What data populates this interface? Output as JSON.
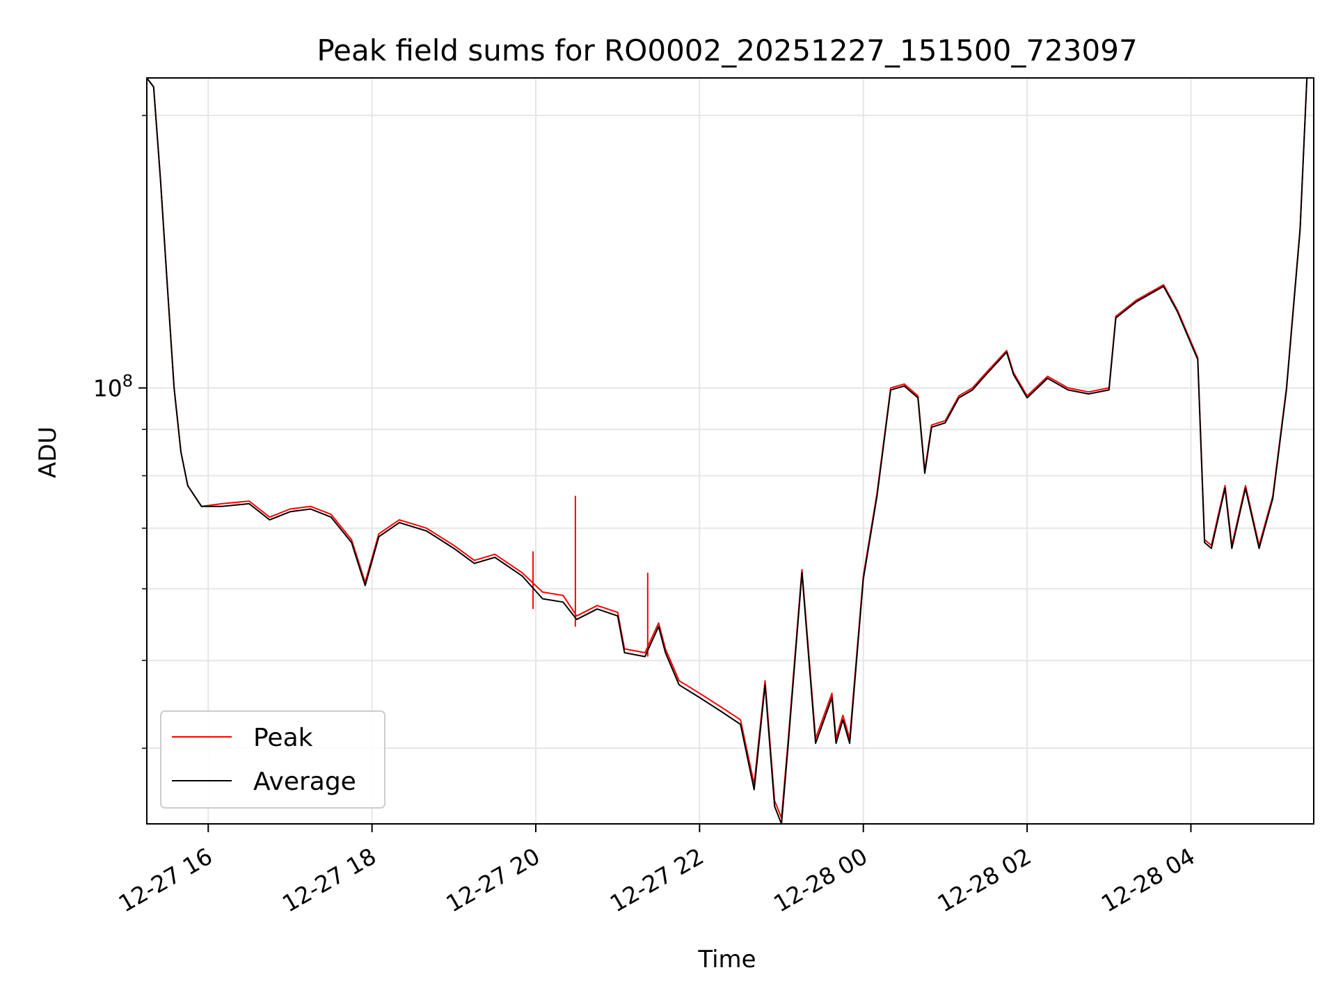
{
  "chart_data": {
    "type": "line",
    "title": "Peak field sums for RO0002_20251227_151500_723097",
    "xlabel": "Time",
    "ylabel": "ADU",
    "yscale": "log",
    "ylim": [
      33000000,
      220000000
    ],
    "xlim": [
      "2025-12-27 15:15",
      "2025-12-28 05:30"
    ],
    "grid": true,
    "legend": "lower-left",
    "x_ticks": [
      "12-27 16",
      "12-27 18",
      "12-27 20",
      "12-27 22",
      "12-28 00",
      "12-28 02",
      "12-28 04"
    ],
    "x_tick_times": [
      "2025-12-27 16:00",
      "2025-12-27 18:00",
      "2025-12-27 20:00",
      "2025-12-27 22:00",
      "2025-12-28 00:00",
      "2025-12-28 02:00",
      "2025-12-28 04:00"
    ],
    "y_ticks": [
      {
        "label": "10",
        "exp": "8",
        "value": 100000000
      }
    ],
    "y_minor_ticks": [
      40000000,
      50000000,
      60000000,
      70000000,
      80000000,
      90000000,
      200000000
    ],
    "x": [
      "2025-12-27 15:15",
      "2025-12-27 15:20",
      "2025-12-27 15:25",
      "2025-12-27 15:30",
      "2025-12-27 15:35",
      "2025-12-27 15:40",
      "2025-12-27 15:45",
      "2025-12-27 15:55",
      "2025-12-27 16:10",
      "2025-12-27 16:30",
      "2025-12-27 16:45",
      "2025-12-27 17:00",
      "2025-12-27 17:15",
      "2025-12-27 17:30",
      "2025-12-27 17:45",
      "2025-12-27 17:55",
      "2025-12-27 18:05",
      "2025-12-27 18:20",
      "2025-12-27 18:40",
      "2025-12-27 19:00",
      "2025-12-27 19:15",
      "2025-12-27 19:30",
      "2025-12-27 19:50",
      "2025-12-27 20:05",
      "2025-12-27 20:20",
      "2025-12-27 20:30",
      "2025-12-27 20:45",
      "2025-12-27 21:00",
      "2025-12-27 21:05",
      "2025-12-27 21:20",
      "2025-12-27 21:30",
      "2025-12-27 21:35",
      "2025-12-27 21:45",
      "2025-12-27 22:00",
      "2025-12-27 22:15",
      "2025-12-27 22:30",
      "2025-12-27 22:40",
      "2025-12-27 22:48",
      "2025-12-27 22:55",
      "2025-12-27 23:00",
      "2025-12-27 23:05",
      "2025-12-27 23:15",
      "2025-12-27 23:25",
      "2025-12-27 23:30",
      "2025-12-27 23:37",
      "2025-12-27 23:40",
      "2025-12-27 23:45",
      "2025-12-27 23:50",
      "2025-12-28 00:00",
      "2025-12-28 00:10",
      "2025-12-28 00:20",
      "2025-12-28 00:30",
      "2025-12-28 00:40",
      "2025-12-28 00:45",
      "2025-12-28 00:50",
      "2025-12-28 01:00",
      "2025-12-28 01:10",
      "2025-12-28 01:20",
      "2025-12-28 01:30",
      "2025-12-28 01:45",
      "2025-12-28 01:50",
      "2025-12-28 02:00",
      "2025-12-28 02:15",
      "2025-12-28 02:30",
      "2025-12-28 02:45",
      "2025-12-28 03:00",
      "2025-12-28 03:05",
      "2025-12-28 03:20",
      "2025-12-28 03:40",
      "2025-12-28 03:50",
      "2025-12-28 04:05",
      "2025-12-28 04:10",
      "2025-12-28 04:15",
      "2025-12-28 04:25",
      "2025-12-28 04:30",
      "2025-12-28 04:40",
      "2025-12-28 04:50",
      "2025-12-28 05:00",
      "2025-12-28 05:10",
      "2025-12-28 05:20",
      "2025-12-28 05:25"
    ],
    "series": [
      {
        "name": "Peak",
        "color": "#ff0000",
        "values": [
          220000000,
          215000000,
          170000000,
          130000000,
          100000000,
          85000000,
          78000000,
          74000000,
          74500000,
          75000000,
          72000000,
          73500000,
          74000000,
          72500000,
          68000000,
          61000000,
          69000000,
          71500000,
          70000000,
          67000000,
          64500000,
          65500000,
          62500000,
          59500000,
          59000000,
          56000000,
          57500000,
          56500000,
          51500000,
          51000000,
          55000000,
          51500000,
          47500000,
          46000000,
          44500000,
          43000000,
          36500000,
          47500000,
          35000000,
          33500000,
          41000000,
          63000000,
          41000000,
          43000000,
          46000000,
          41000000,
          43500000,
          41000000,
          62000000,
          76500000,
          100000000,
          101000000,
          98000000,
          81000000,
          91000000,
          92000000,
          98000000,
          100000000,
          104000000,
          110000000,
          104000000,
          98000000,
          103000000,
          100000000,
          99000000,
          100000000,
          120000000,
          125000000,
          130000000,
          122000000,
          108000000,
          68000000,
          67000000,
          78000000,
          67000000,
          78000000,
          67000000,
          76000000,
          100000000,
          150000000,
          220000000
        ]
      },
      {
        "name": "Average",
        "color": "#000000",
        "values": [
          220000000,
          215000000,
          170000000,
          130000000,
          100000000,
          85000000,
          78000000,
          74000000,
          74000000,
          74500000,
          71500000,
          73000000,
          73500000,
          72000000,
          67500000,
          60500000,
          68500000,
          71000000,
          69500000,
          66500000,
          64000000,
          65000000,
          62000000,
          58500000,
          58000000,
          55500000,
          57000000,
          56000000,
          51000000,
          50500000,
          54500000,
          51000000,
          47000000,
          45500000,
          44000000,
          42500000,
          36000000,
          47000000,
          34500000,
          33000000,
          40500000,
          62500000,
          40500000,
          42500000,
          45500000,
          40500000,
          43000000,
          40500000,
          61500000,
          76000000,
          99500000,
          100500000,
          97500000,
          80500000,
          90500000,
          91500000,
          97500000,
          99500000,
          103500000,
          109500000,
          103500000,
          97500000,
          102500000,
          99500000,
          98500000,
          99500000,
          119500000,
          124500000,
          129500000,
          121500000,
          107500000,
          67500000,
          66500000,
          77500000,
          66500000,
          77500000,
          66500000,
          75500000,
          99500000,
          149500000,
          220000000
        ]
      }
    ],
    "spikes": [
      {
        "series": "Peak",
        "x": "2025-12-27 19:58",
        "base": 57000000,
        "value": 66000000
      },
      {
        "series": "Peak",
        "x": "2025-12-27 20:29",
        "base": 54500000,
        "value": 76000000
      },
      {
        "series": "Peak",
        "x": "2025-12-27 21:22",
        "base": 50500000,
        "value": 62500000
      }
    ]
  }
}
